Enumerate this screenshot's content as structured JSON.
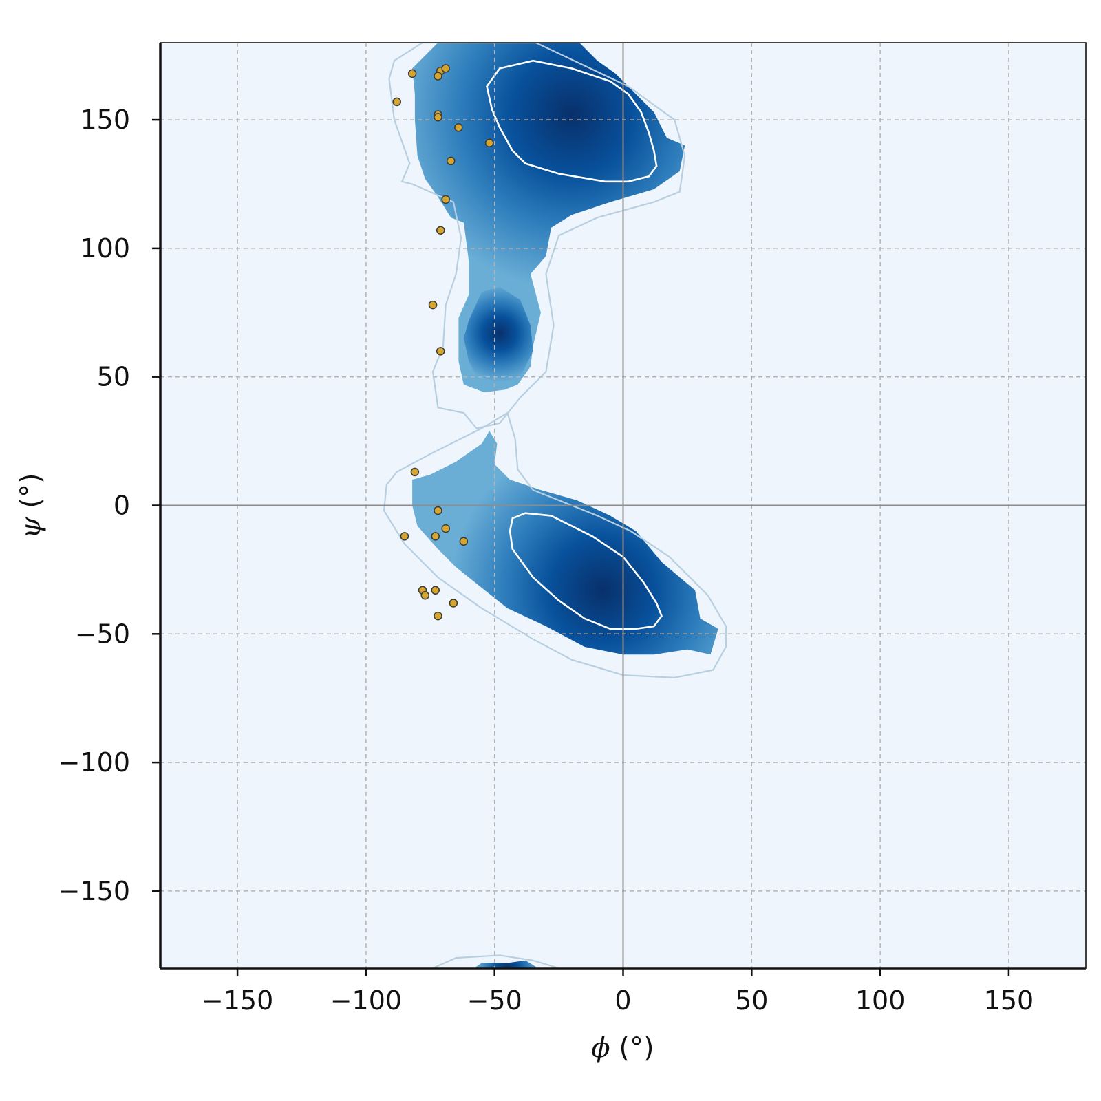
{
  "chart_data": {
    "type": "heatmap",
    "title": "",
    "xlabel": {
      "symbol": "ϕ",
      "unit": " (°)"
    },
    "ylabel": {
      "symbol": "ψ",
      "unit": " (°)"
    },
    "xlim": [
      -180,
      180
    ],
    "ylim": [
      -180,
      180
    ],
    "xticks": [
      -150,
      -100,
      -50,
      0,
      50,
      100,
      150
    ],
    "yticks": [
      -150,
      -100,
      -50,
      0,
      50,
      100,
      150
    ],
    "xtick_labels": [
      "−150",
      "−100",
      "−50",
      "0",
      "50",
      "100",
      "150"
    ],
    "ytick_labels": [
      "−150",
      "−100",
      "−50",
      "0",
      "50",
      "100",
      "150"
    ],
    "grid": true,
    "reference_lines": {
      "x": 0,
      "y": 0
    },
    "colors": {
      "background": "#eef5fc",
      "density_low": "#6aaed6",
      "density_mid": "#2f7ebc",
      "density_high": "#08306b",
      "contour_outer": "#b7cfe0",
      "contour_inner": "#ffffff",
      "points_fill": "#d4a52f",
      "points_edge": "#3a3a3a",
      "grid": "#b4b4b4"
    },
    "density_regions": [
      {
        "name": "beta-PPII region",
        "outer_contour": [
          [
            -89,
            173
          ],
          [
            -78,
            180
          ],
          [
            -34,
            180
          ],
          [
            -17,
            172
          ],
          [
            2,
            163
          ],
          [
            20,
            150
          ],
          [
            24,
            136
          ],
          [
            22,
            122
          ],
          [
            12,
            118
          ],
          [
            -10,
            112
          ],
          [
            -25,
            105
          ],
          [
            -30,
            90
          ],
          [
            -27,
            70
          ],
          [
            -30,
            52
          ],
          [
            -40,
            42
          ],
          [
            -48,
            32
          ],
          [
            -57,
            30
          ],
          [
            -62,
            36
          ],
          [
            -72,
            38
          ],
          [
            -74,
            52
          ],
          [
            -70,
            62
          ],
          [
            -69,
            78
          ],
          [
            -65,
            90
          ],
          [
            -63,
            104
          ],
          [
            -66,
            118
          ],
          [
            -82,
            125
          ],
          [
            -86,
            126
          ],
          [
            -83,
            133
          ],
          [
            -89,
            150
          ],
          [
            -91,
            166
          ],
          [
            -89,
            173
          ]
        ],
        "density_edge": [
          [
            -82,
            170
          ],
          [
            -72,
            180
          ],
          [
            -17,
            180
          ],
          [
            -10,
            173
          ],
          [
            -3,
            168
          ],
          [
            5,
            160
          ],
          [
            12,
            153
          ],
          [
            17,
            143
          ],
          [
            24,
            140
          ],
          [
            22,
            130
          ],
          [
            12,
            123
          ],
          [
            -5,
            118
          ],
          [
            -20,
            113
          ],
          [
            -28,
            108
          ],
          [
            -30,
            97
          ],
          [
            -36,
            90
          ],
          [
            -32,
            75
          ],
          [
            -35,
            62
          ],
          [
            -36,
            54
          ],
          [
            -41,
            47
          ],
          [
            -46,
            45
          ],
          [
            -54,
            44
          ],
          [
            -62,
            47
          ],
          [
            -64,
            56
          ],
          [
            -64,
            73
          ],
          [
            -60,
            82
          ],
          [
            -60,
            95
          ],
          [
            -62,
            110
          ],
          [
            -67,
            112
          ],
          [
            -72,
            120
          ],
          [
            -77,
            127
          ],
          [
            -80,
            136
          ],
          [
            -81,
            150
          ],
          [
            -81,
            160
          ],
          [
            -82,
            170
          ]
        ],
        "core_contour": [
          [
            -53,
            163
          ],
          [
            -48,
            170
          ],
          [
            -35,
            173
          ],
          [
            -20,
            170
          ],
          [
            -5,
            165
          ],
          [
            2,
            160
          ],
          [
            7,
            153
          ],
          [
            10,
            145
          ],
          [
            12,
            138
          ],
          [
            13,
            132
          ],
          [
            10,
            128
          ],
          [
            2,
            126
          ],
          [
            -7,
            126
          ],
          [
            -25,
            129
          ],
          [
            -38,
            133
          ],
          [
            -43,
            138
          ],
          [
            -48,
            147
          ],
          [
            -51,
            154
          ],
          [
            -53,
            163
          ]
        ],
        "peak": [
          -20,
          152
        ]
      },
      {
        "name": "alpha region",
        "outer_contour": [
          [
            -92,
            8
          ],
          [
            -88,
            13
          ],
          [
            -75,
            20
          ],
          [
            -55,
            30
          ],
          [
            -45,
            36
          ],
          [
            -42,
            26
          ],
          [
            -41,
            14
          ],
          [
            -35,
            6
          ],
          [
            -25,
            2
          ],
          [
            -10,
            -4
          ],
          [
            3,
            -10
          ],
          [
            18,
            -20
          ],
          [
            33,
            -35
          ],
          [
            40,
            -47
          ],
          [
            40,
            -55
          ],
          [
            35,
            -64
          ],
          [
            20,
            -67
          ],
          [
            0,
            -66
          ],
          [
            -20,
            -60
          ],
          [
            -35,
            -52
          ],
          [
            -55,
            -40
          ],
          [
            -72,
            -28
          ],
          [
            -85,
            -15
          ],
          [
            -93,
            -2
          ],
          [
            -92,
            8
          ]
        ],
        "density_edge": [
          [
            -82,
            10
          ],
          [
            -75,
            12
          ],
          [
            -65,
            17
          ],
          [
            -55,
            24
          ],
          [
            -52,
            29
          ],
          [
            -49,
            24
          ],
          [
            -50,
            16
          ],
          [
            -44,
            10
          ],
          [
            -32,
            6
          ],
          [
            -18,
            2
          ],
          [
            -5,
            -4
          ],
          [
            5,
            -10
          ],
          [
            15,
            -22
          ],
          [
            28,
            -33
          ],
          [
            30,
            -44
          ],
          [
            37,
            -48
          ],
          [
            34,
            -58
          ],
          [
            25,
            -56
          ],
          [
            12,
            -58
          ],
          [
            0,
            -58
          ],
          [
            -15,
            -55
          ],
          [
            -30,
            -47
          ],
          [
            -45,
            -40
          ],
          [
            -55,
            -32
          ],
          [
            -65,
            -24
          ],
          [
            -72,
            -17
          ],
          [
            -80,
            -8
          ],
          [
            -82,
            0
          ],
          [
            -82,
            10
          ]
        ],
        "core_contour": [
          [
            -43,
            -5
          ],
          [
            -38,
            -3
          ],
          [
            -28,
            -4
          ],
          [
            -12,
            -12
          ],
          [
            0,
            -20
          ],
          [
            8,
            -30
          ],
          [
            13,
            -38
          ],
          [
            15,
            -43
          ],
          [
            12,
            -47
          ],
          [
            5,
            -48
          ],
          [
            -5,
            -48
          ],
          [
            -15,
            -44
          ],
          [
            -25,
            -37
          ],
          [
            -35,
            -28
          ],
          [
            -43,
            -17
          ],
          [
            -44,
            -10
          ],
          [
            -43,
            -5
          ]
        ],
        "peak": [
          -8,
          -33
        ]
      },
      {
        "name": "bridge region",
        "density_edge": [
          [
            -60,
            72
          ],
          [
            -55,
            83
          ],
          [
            -48,
            85
          ],
          [
            -40,
            80
          ],
          [
            -36,
            70
          ],
          [
            -35,
            60
          ],
          [
            -40,
            50
          ],
          [
            -48,
            47
          ],
          [
            -56,
            48
          ],
          [
            -60,
            56
          ],
          [
            -62,
            65
          ],
          [
            -60,
            72
          ]
        ],
        "peak": [
          -48,
          67
        ]
      },
      {
        "name": "wrapped bottom region",
        "outer_contour": [
          [
            -74,
            -180
          ],
          [
            -65,
            -176
          ],
          [
            -48,
            -175
          ],
          [
            -35,
            -177
          ],
          [
            -25,
            -180
          ]
        ],
        "density_edge": [
          [
            -58,
            -180
          ],
          [
            -55,
            -178
          ],
          [
            -45,
            -178
          ],
          [
            -38,
            -177
          ],
          [
            -33,
            -180
          ]
        ],
        "peak": [
          -45,
          -180
        ]
      }
    ],
    "points": [
      [
        -82,
        168
      ],
      [
        -71,
        169
      ],
      [
        -69,
        170
      ],
      [
        -72,
        167
      ],
      [
        -88,
        157
      ],
      [
        -72,
        152
      ],
      [
        -72,
        151
      ],
      [
        -64,
        147
      ],
      [
        -52,
        141
      ],
      [
        -67,
        134
      ],
      [
        -69,
        119
      ],
      [
        -71,
        107
      ],
      [
        -74,
        78
      ],
      [
        -71,
        60
      ],
      [
        -81,
        13
      ],
      [
        -72,
        -2
      ],
      [
        -69,
        -9
      ],
      [
        -85,
        -12
      ],
      [
        -73,
        -12
      ],
      [
        -62,
        -14
      ],
      [
        -78,
        -33
      ],
      [
        -77,
        -35
      ],
      [
        -73,
        -33
      ],
      [
        -66,
        -38
      ],
      [
        -72,
        -43
      ]
    ]
  }
}
